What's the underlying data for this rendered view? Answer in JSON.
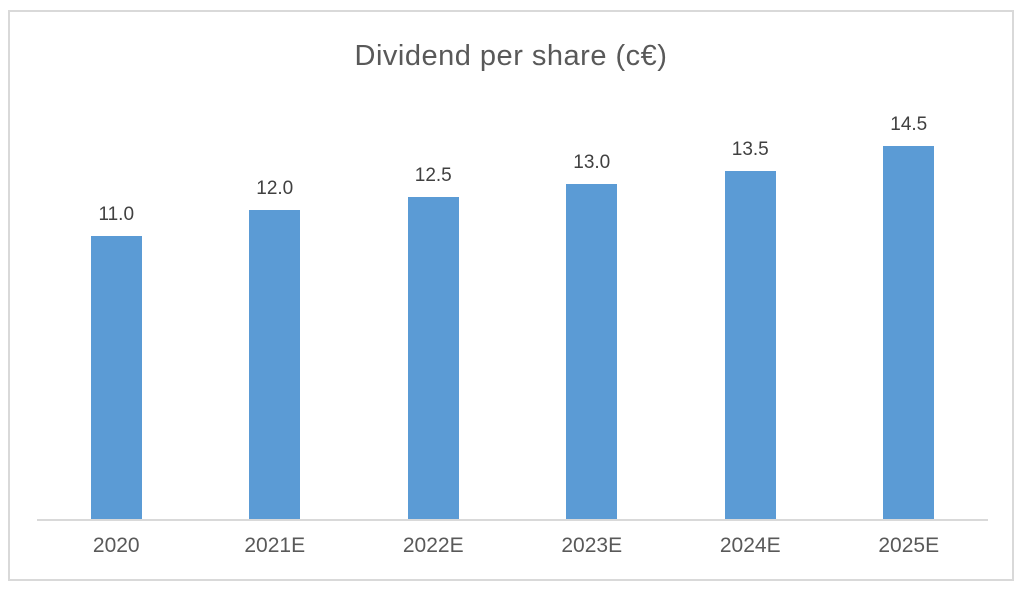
{
  "chart_data": {
    "type": "bar",
    "title": "Dividend per share (c€)",
    "categories": [
      "2020",
      "2021E",
      "2022E",
      "2023E",
      "2024E",
      "2025E"
    ],
    "values": [
      11.0,
      12.0,
      12.5,
      13.0,
      13.5,
      14.5
    ],
    "value_labels": [
      "11.0",
      "12.0",
      "12.5",
      "13.0",
      "13.5",
      "14.5"
    ],
    "xlabel": "",
    "ylabel": "",
    "ylim": [
      0,
      16.7
    ],
    "grid": false,
    "legend": false,
    "data_labels_position": "above-bar"
  },
  "colors": {
    "bar": "#5B9BD5",
    "title": "#595959",
    "data_label": "#404040",
    "axis_label": "#595959",
    "axis_line": "#D9D9D9",
    "border": "#D9D9D9",
    "background": "#FFFFFF"
  }
}
